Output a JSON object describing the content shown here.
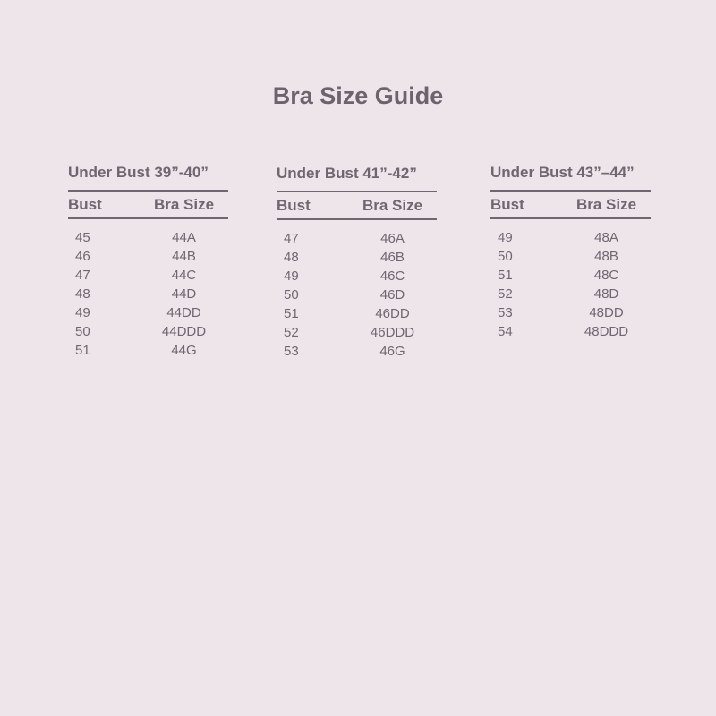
{
  "title": "Bra Size Guide",
  "colors": {
    "background": "#ede5ea",
    "text": "#6f6672"
  },
  "tables": [
    {
      "heading": "Under Bust 39”-40”",
      "col_bust": "Bust",
      "col_size": "Bra Size",
      "rows": [
        [
          "45",
          "44A"
        ],
        [
          "46",
          "44B"
        ],
        [
          "47",
          "44C"
        ],
        [
          "48",
          "44D"
        ],
        [
          "49",
          "44DD"
        ],
        [
          "50",
          "44DDD"
        ],
        [
          "51",
          "44G"
        ]
      ]
    },
    {
      "heading": "Under Bust 41”-42”",
      "col_bust": "Bust",
      "col_size": "Bra Size",
      "rows": [
        [
          "47",
          "46A"
        ],
        [
          "48",
          "46B"
        ],
        [
          "49",
          "46C"
        ],
        [
          "50",
          "46D"
        ],
        [
          "51",
          "46DD"
        ],
        [
          "52",
          "46DDD"
        ],
        [
          "53",
          "46G"
        ]
      ]
    },
    {
      "heading": "Under Bust 43”–44”",
      "col_bust": "Bust",
      "col_size": "Bra Size",
      "rows": [
        [
          "49",
          "48A"
        ],
        [
          "50",
          "48B"
        ],
        [
          "51",
          "48C"
        ],
        [
          "52",
          "48D"
        ],
        [
          "53",
          "48DD"
        ],
        [
          "54",
          "48DDD"
        ]
      ]
    }
  ]
}
